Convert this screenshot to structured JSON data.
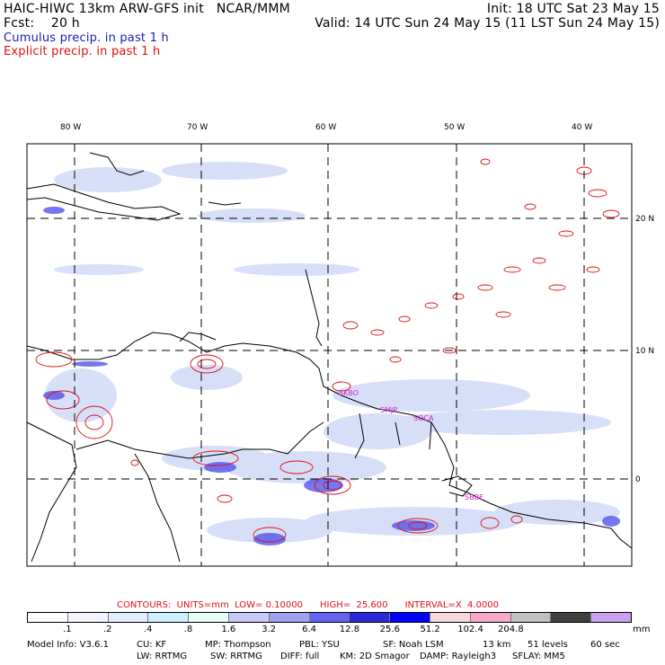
{
  "header": {
    "line1_left": "HAIC-HIWC 13km ARW-GFS init   NCAR/MMM",
    "line1_right": "Init: 18 UTC Sat 23 May 15",
    "line2_left": "Fcst:    20 h",
    "line2_right": "Valid: 14 UTC Sun 24 May 15 (11 LST Sun 24 May 15)",
    "line3": "Cumulus precip. in past 1 h",
    "line4": "Explicit precip. in past 1 h"
  },
  "map": {
    "lon_labels": [
      "80 W",
      "70 W",
      "60 W",
      "50 W",
      "40 W"
    ],
    "lat_labels": [
      "20 N",
      "10 N",
      "0"
    ],
    "sites": [
      "SKBO",
      "SMJP",
      "SOCA",
      "SBBE"
    ]
  },
  "colors": {
    "cumulus": "#3a3ae0",
    "explicit": "#e01010",
    "site": "#d020d0",
    "grid": "#000000"
  },
  "contours_line": "CONTOURS:  UNITS=mm  LOW= 0.10000      HIGH=  25.600      INTERVAL=X  4.0000",
  "legend": {
    "colors": [
      "#ffffff",
      "#f4f4ff",
      "#e4ecff",
      "#ccf0ff",
      "#e6fff8",
      "#c8c8f8",
      "#a0a0f0",
      "#6464f0",
      "#2a2ad8",
      "#0000ff",
      "#f8d8d8",
      "#f8a8c8",
      "#c0c0c0",
      "#404040",
      "#c8a0f0"
    ],
    "ticks": [
      ".1",
      ".2",
      ".4",
      ".8",
      "1.6",
      "3.2",
      "6.4",
      "12.8",
      "25.6",
      "51.2",
      "102.4",
      "204.8"
    ],
    "units": "mm"
  },
  "model_info": {
    "line1": [
      "Model Info: V3.6.1",
      "CU: KF",
      "MP: Thompson",
      "PBL: YSU",
      "SF: Noah LSM",
      "13 km",
      "51 levels",
      "60 sec"
    ],
    "line2": [
      "LW: RRTMG",
      "SW: RRTMG",
      "DIFF: full",
      "KM: 2D Smagor",
      "DAMP: Rayleigh3",
      "SFLAY: MM5"
    ]
  }
}
